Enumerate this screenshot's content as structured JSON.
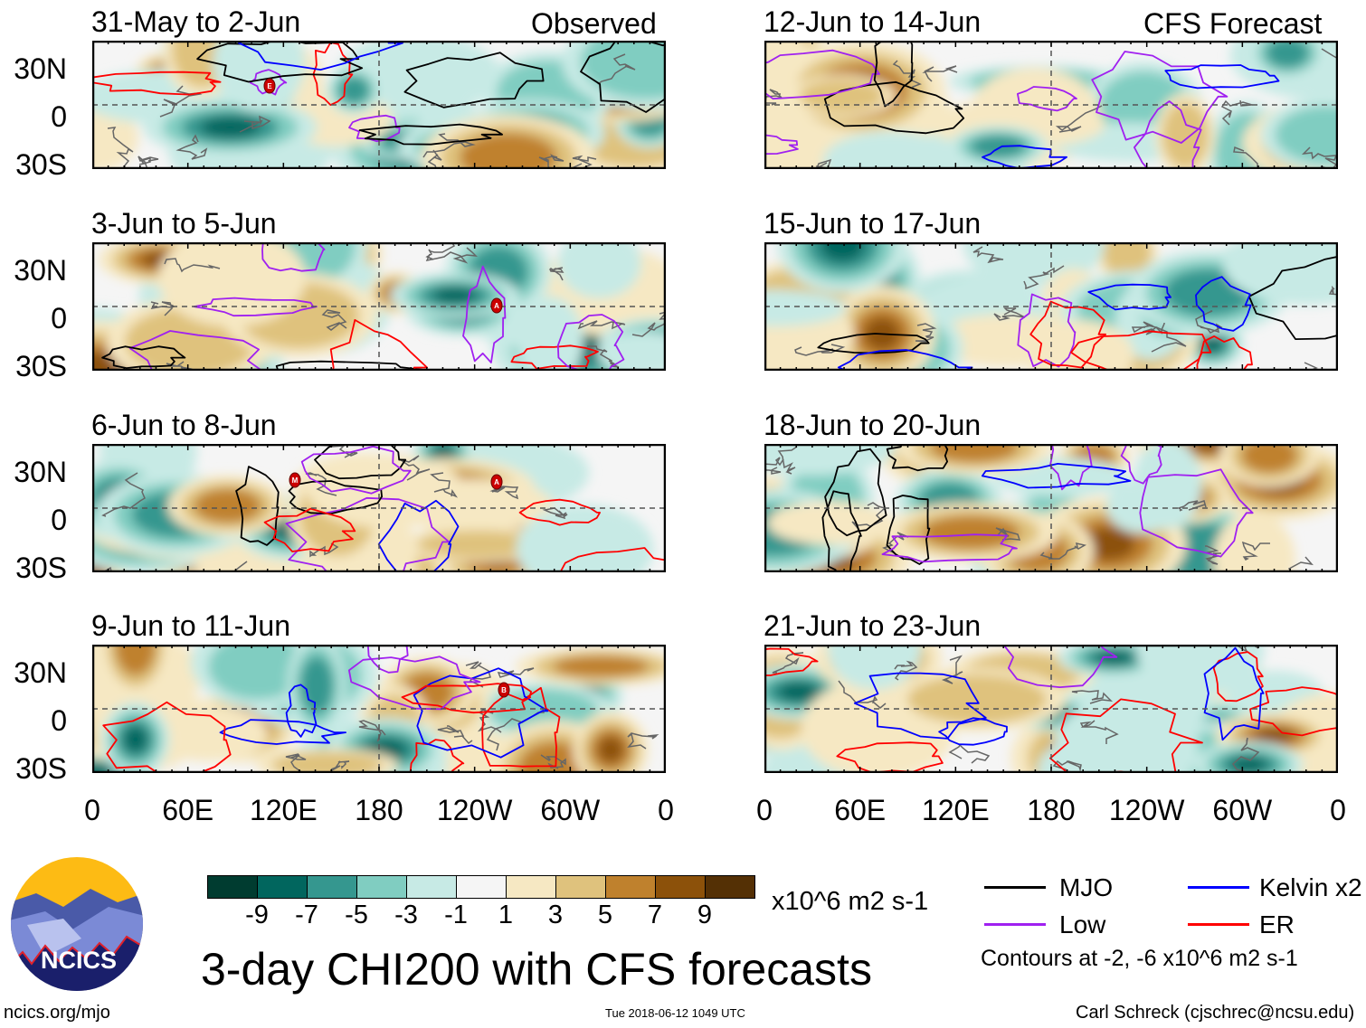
{
  "header": {
    "left_label": "Observed",
    "right_label": "CFS Forecast"
  },
  "panels_left": [
    {
      "title": "31-May to 2-Jun",
      "markers": [
        "E"
      ]
    },
    {
      "title": "3-Jun to 5-Jun",
      "markers": [
        "A"
      ]
    },
    {
      "title": "6-Jun to 8-Jun",
      "markers": [
        "M",
        "A"
      ]
    },
    {
      "title": "9-Jun to 11-Jun",
      "markers": [
        "B"
      ]
    }
  ],
  "panels_right": [
    {
      "title": "12-Jun to 14-Jun"
    },
    {
      "title": "15-Jun to 17-Jun"
    },
    {
      "title": "18-Jun to 20-Jun"
    },
    {
      "title": "21-Jun to 23-Jun"
    }
  ],
  "lat_labels": [
    "30N",
    "0",
    "30S"
  ],
  "lon_labels": [
    "0",
    "60E",
    "120E",
    "180",
    "120W",
    "60W",
    "0"
  ],
  "colorbar": {
    "colors": [
      "#003c30",
      "#01665e",
      "#35978f",
      "#80cdc1",
      "#c7eae5",
      "#f5f5f5",
      "#f6e8c3",
      "#dfc27d",
      "#bf812d",
      "#8c510a",
      "#543005"
    ],
    "labels": [
      "-9",
      "-7",
      "-5",
      "-3",
      "-1",
      "1",
      "3",
      "5",
      "7",
      "9"
    ],
    "units": "x10^6 m2 s-1"
  },
  "legend": {
    "items": [
      {
        "label": "MJO",
        "color": "#000000"
      },
      {
        "label": "Kelvin x2",
        "color": "#0000ff"
      },
      {
        "label": "Low",
        "color": "#a020f0"
      },
      {
        "label": "ER",
        "color": "#ff0000"
      }
    ],
    "contours_note": "Contours at -2, -6 x10^6 m2 s-1"
  },
  "logo": {
    "text": "NCICS"
  },
  "footer": {
    "title": "3-day CHI200 with CFS forecasts",
    "url": "ncics.org/mjo",
    "timestamp": "Tue 2018-06-12 1049 UTC",
    "author": "Carl Schreck (cjschrec@ncsu.edu)"
  }
}
